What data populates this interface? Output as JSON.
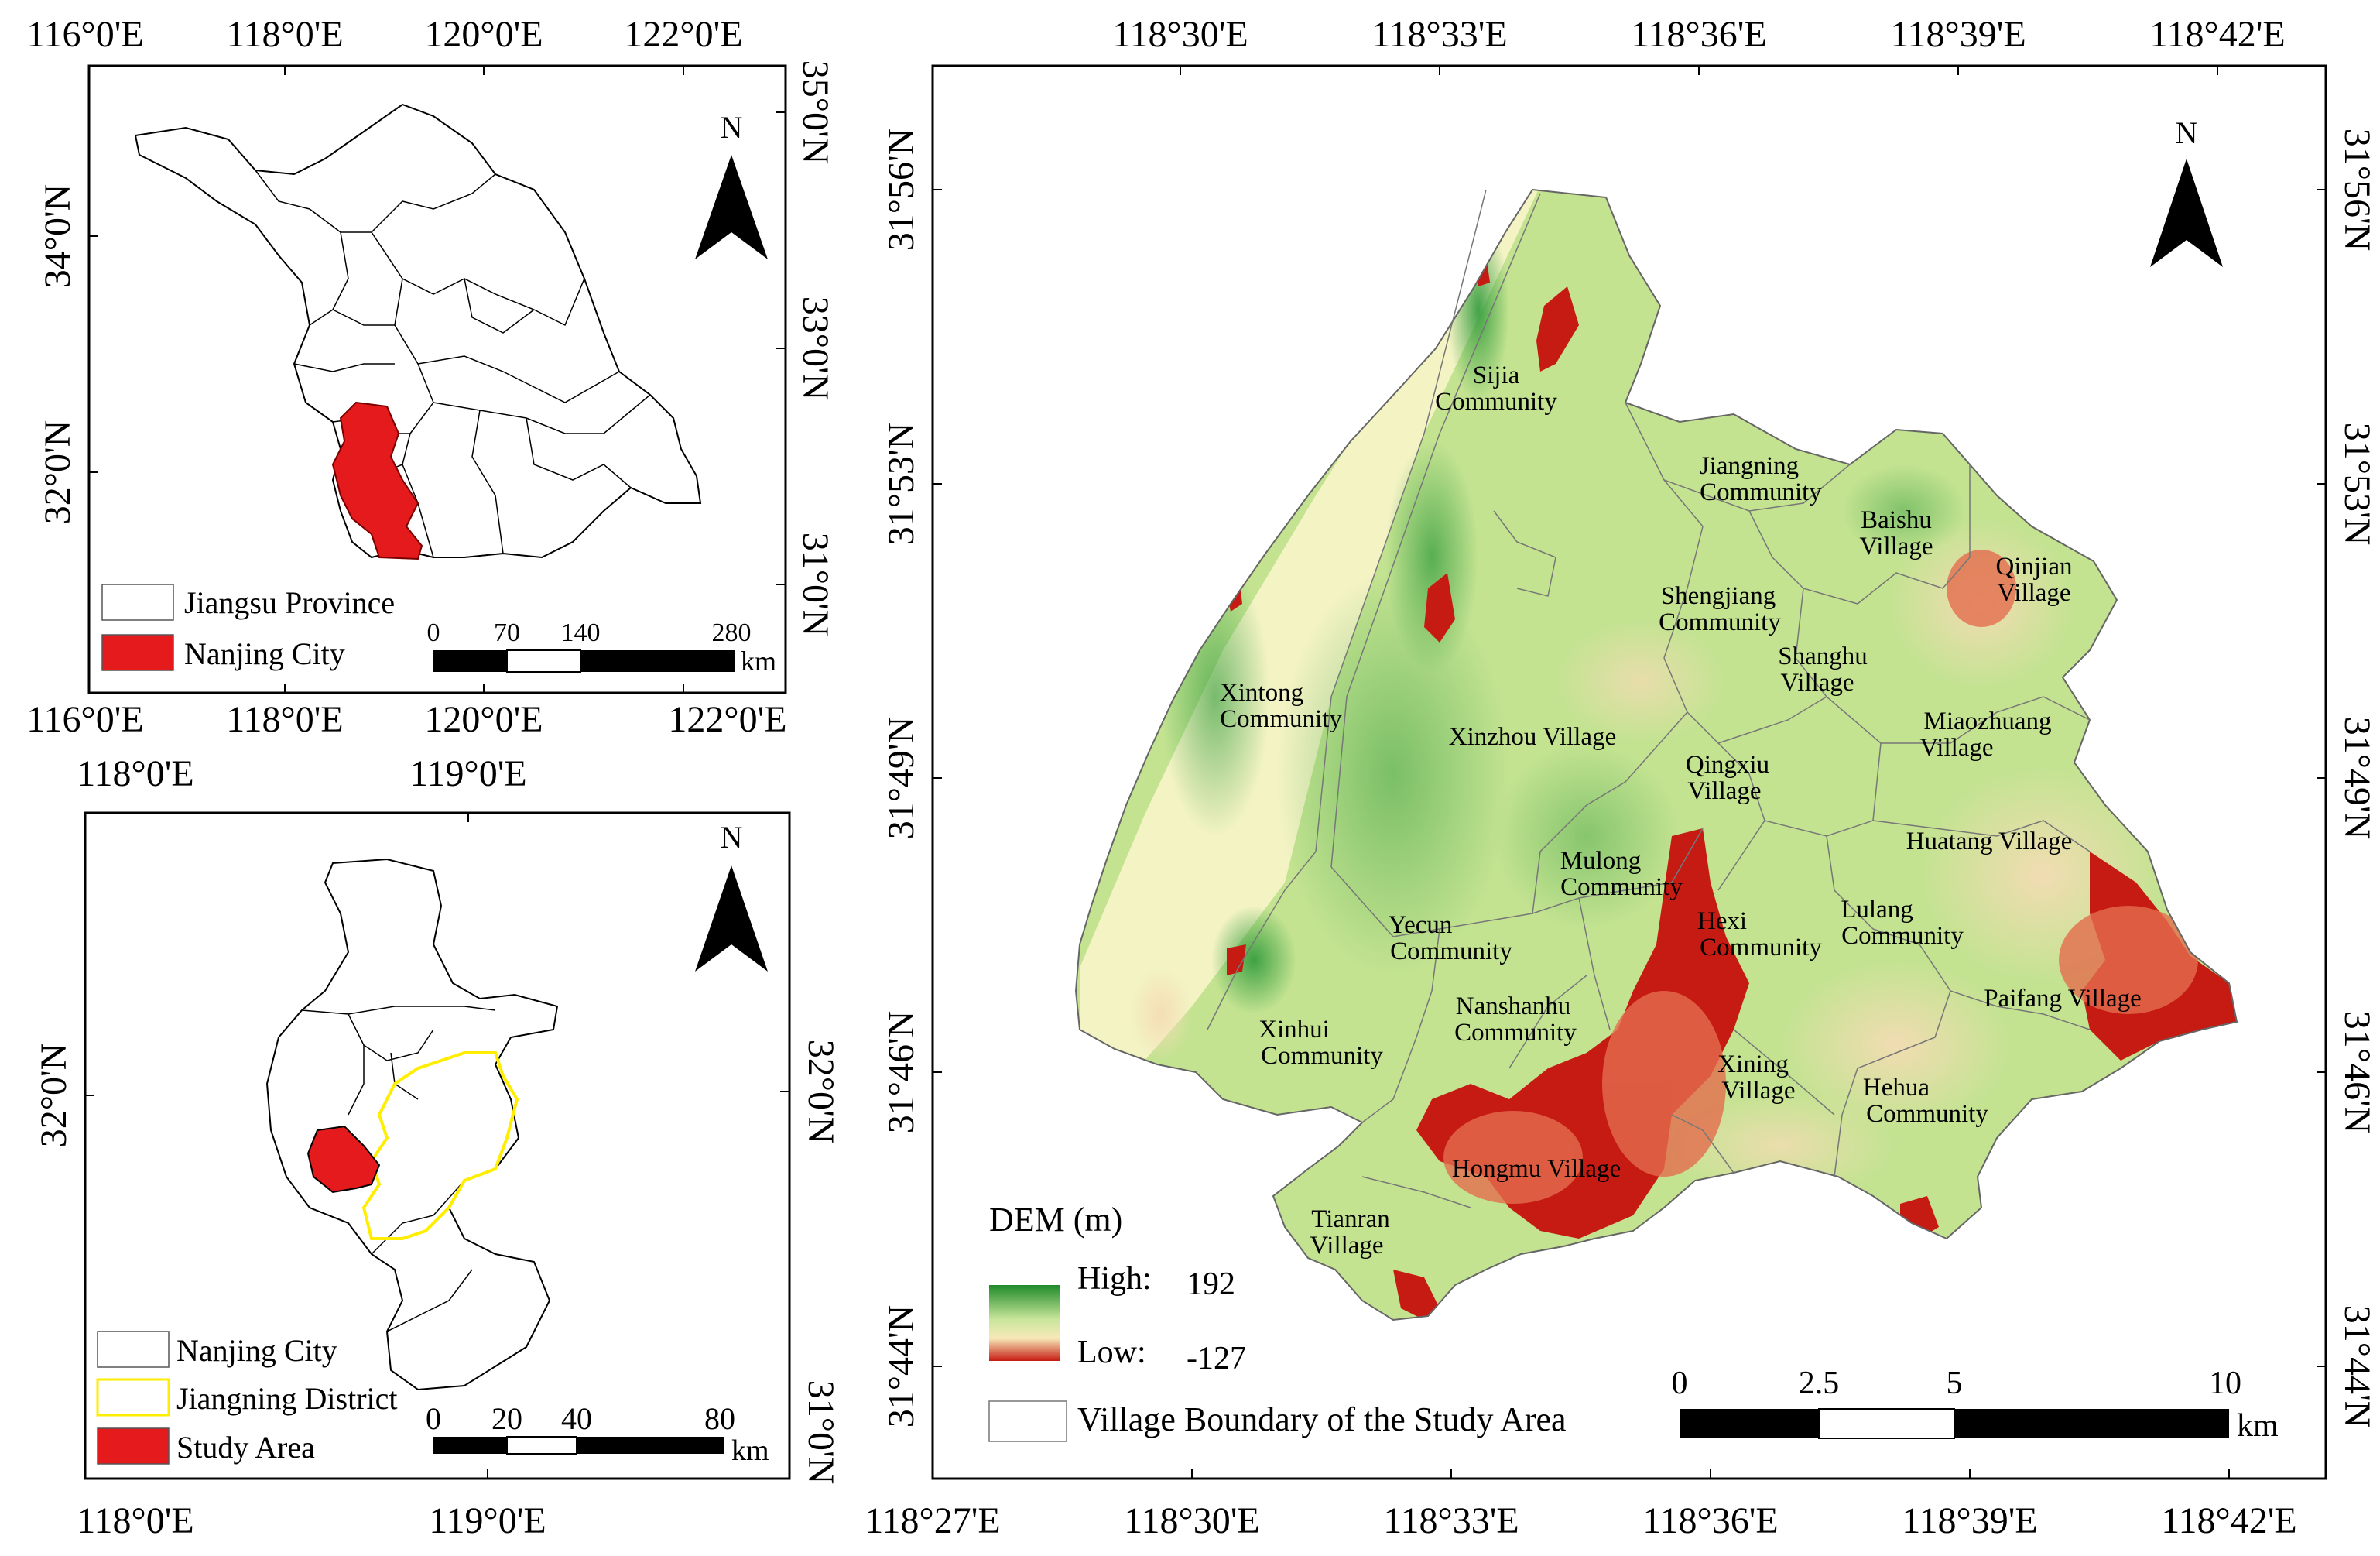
{
  "colors": {
    "frame": "#000000",
    "nanjing_fill": "#e41a1c",
    "study_fill": "#e41a1c",
    "jiangning_outline": "#ffee00",
    "dem_high": "#1f8a2a",
    "dem_mid": "#f7e9b8",
    "dem_low": "#c51b12",
    "river": "#f3f3c4"
  },
  "map_jiangsu": {
    "top_ticks": [
      "116°0'E",
      "118°0'E",
      "120°0'E",
      "122°0'E"
    ],
    "bottom_ticks": [
      "116°0'E",
      "118°0'E",
      "120°0'E",
      "122°0'E"
    ],
    "left_ticks": [
      "34°0'N",
      "32°0'N"
    ],
    "right_ticks": [
      "35°0'N",
      "33°0'N",
      "31°0'N"
    ],
    "north_label": "N",
    "legend": [
      {
        "label": "Jiangsu Province",
        "swatch": "white"
      },
      {
        "label": "Nanjing City",
        "swatch": "red"
      }
    ],
    "scale": {
      "labels": [
        "0",
        "70",
        "140",
        "280"
      ],
      "unit": "km"
    }
  },
  "map_nanjing": {
    "top_ticks": [
      "118°0'E",
      "119°0'E"
    ],
    "bottom_ticks": [
      "118°0'E",
      "119°0'E"
    ],
    "left_ticks": [
      "32°0'N"
    ],
    "right_ticks": [
      "32°0'N",
      "31°0'N"
    ],
    "north_label": "N",
    "legend": [
      {
        "label": "Nanjing City",
        "swatch": "white"
      },
      {
        "label": "Jiangning District",
        "swatch": "yellow"
      },
      {
        "label": "Study Area",
        "swatch": "red"
      }
    ],
    "scale": {
      "labels": [
        "0",
        "20",
        "40",
        "80"
      ],
      "unit": "km"
    }
  },
  "map_study": {
    "top_ticks": [
      "118°30'E",
      "118°33'E",
      "118°36'E",
      "118°39'E",
      "118°42'E"
    ],
    "bottom_ticks": [
      "118°27'E",
      "118°30'E",
      "118°33'E",
      "118°36'E",
      "118°39'E",
      "118°42'E"
    ],
    "left_ticks": [
      "31°56'N",
      "31°53'N",
      "31°49'N",
      "31°46'N",
      "31°44'N"
    ],
    "right_ticks": [
      "31°56'N",
      "31°53'N",
      "31°49'N",
      "31°46'N",
      "31°44'N"
    ],
    "north_label": "N",
    "dem_legend": {
      "title": "DEM (m)",
      "high_label": "High:",
      "high_value": "192",
      "low_label": "Low:",
      "low_value": "-127"
    },
    "boundary_legend": "Village Boundary of the Study Area",
    "scale": {
      "labels": [
        "0",
        "2.5",
        "5",
        "10"
      ],
      "unit": "km"
    },
    "villages": [
      {
        "l1": "Sijia",
        "l2": "Community"
      },
      {
        "l1": "Jiangning",
        "l2": "Community"
      },
      {
        "l1": "Baishu",
        "l2": "Village"
      },
      {
        "l1": "Qinjian",
        "l2": "Village"
      },
      {
        "l1": "Shengjiang",
        "l2": "Community"
      },
      {
        "l1": "Shanghu",
        "l2": "Village"
      },
      {
        "l1": "Xintong",
        "l2": "Community"
      },
      {
        "l1": "Xinzhou Village",
        "l2": ""
      },
      {
        "l1": "Miaozhuang",
        "l2": "Village"
      },
      {
        "l1": "Qingxiu",
        "l2": "Village"
      },
      {
        "l1": "Huatang Village",
        "l2": ""
      },
      {
        "l1": "Mulong",
        "l2": "Community"
      },
      {
        "l1": "Yecun",
        "l2": "Community"
      },
      {
        "l1": "Hexi",
        "l2": "Community"
      },
      {
        "l1": "Lulang",
        "l2": "Community"
      },
      {
        "l1": "Paifang Village",
        "l2": ""
      },
      {
        "l1": "Nanshanhu",
        "l2": "Community"
      },
      {
        "l1": "Xinhui",
        "l2": "Community"
      },
      {
        "l1": "Xining",
        "l2": "Village"
      },
      {
        "l1": "Hehua",
        "l2": "Community"
      },
      {
        "l1": "Hongmu Village",
        "l2": ""
      },
      {
        "l1": "Tianran",
        "l2": "Village"
      }
    ]
  }
}
